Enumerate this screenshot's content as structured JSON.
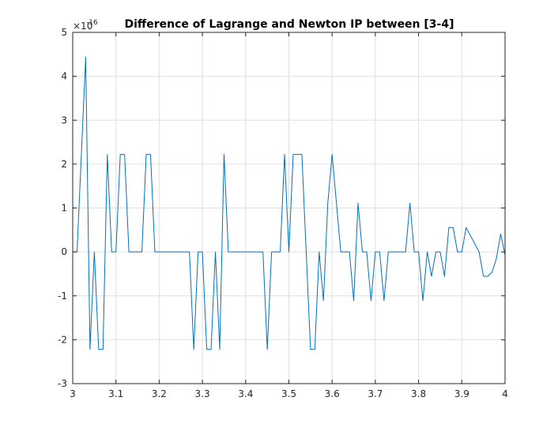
{
  "chart_data": {
    "type": "line",
    "title": "Difference of Lagrange and Newton IP between [3-4]",
    "xlabel": "",
    "ylabel": "",
    "exponent_label": "×10",
    "exponent_power": "-16",
    "xlim": [
      3,
      4
    ],
    "ylim": [
      -3,
      5
    ],
    "x_ticks": [
      "3",
      "3.1",
      "3.2",
      "3.3",
      "3.4",
      "3.5",
      "3.6",
      "3.7",
      "3.8",
      "3.9",
      "4"
    ],
    "y_ticks": [
      "-3",
      "-2",
      "-1",
      "0",
      "1",
      "2",
      "3",
      "4",
      "5"
    ],
    "grid": true,
    "line_color": "#0072bd",
    "series": [
      {
        "x": [
          3.0,
          3.01,
          3.02,
          3.03,
          3.04,
          3.05,
          3.06,
          3.07,
          3.08,
          3.09,
          3.1,
          3.11,
          3.12,
          3.13,
          3.14,
          3.15,
          3.16,
          3.17,
          3.18,
          3.19,
          3.2,
          3.21,
          3.22,
          3.23,
          3.24,
          3.25,
          3.26,
          3.27,
          3.28,
          3.29,
          3.3,
          3.31,
          3.32,
          3.33,
          3.34,
          3.35,
          3.36,
          3.37,
          3.38,
          3.39,
          3.4,
          3.41,
          3.42,
          3.43,
          3.44,
          3.45,
          3.46,
          3.47,
          3.48,
          3.49,
          3.5,
          3.51,
          3.52,
          3.53,
          3.54,
          3.55,
          3.56,
          3.57,
          3.58,
          3.59,
          3.6,
          3.61,
          3.62,
          3.63,
          3.64,
          3.65,
          3.66,
          3.67,
          3.68,
          3.69,
          3.7,
          3.71,
          3.72,
          3.73,
          3.74,
          3.75,
          3.76,
          3.77,
          3.78,
          3.79,
          3.8,
          3.81,
          3.82,
          3.83,
          3.84,
          3.85,
          3.86,
          3.87,
          3.88,
          3.89,
          3.9,
          3.91,
          3.92,
          3.93,
          3.94,
          3.95,
          3.96,
          3.97,
          3.98,
          3.99,
          4.0
        ],
        "y": [
          0,
          0,
          2.22,
          4.44,
          -2.22,
          0,
          -2.22,
          -2.22,
          2.22,
          0,
          0,
          2.22,
          2.22,
          0,
          0,
          0,
          0,
          2.22,
          2.22,
          0,
          0,
          0,
          0,
          0,
          0,
          0,
          0,
          0,
          -2.22,
          0,
          0,
          -2.22,
          -2.22,
          0,
          -2.22,
          2.22,
          0,
          0,
          0,
          0,
          0,
          0,
          0,
          0,
          0,
          -2.22,
          0,
          0,
          0,
          2.22,
          0,
          2.22,
          2.22,
          2.22,
          0,
          -2.22,
          -2.22,
          0,
          -1.11,
          1.11,
          2.22,
          1.11,
          0,
          0,
          0,
          -1.11,
          1.11,
          0,
          0,
          -1.11,
          0,
          0,
          -1.11,
          0,
          0,
          0,
          0,
          0,
          1.11,
          0,
          0,
          -1.11,
          0,
          -0.555,
          0,
          0,
          -0.555,
          0.555,
          0.555,
          0,
          0,
          0.555,
          0.37,
          0.185,
          0,
          -0.555,
          -0.555,
          -0.46,
          -0.15,
          0.41,
          -0.07
        ]
      }
    ]
  }
}
